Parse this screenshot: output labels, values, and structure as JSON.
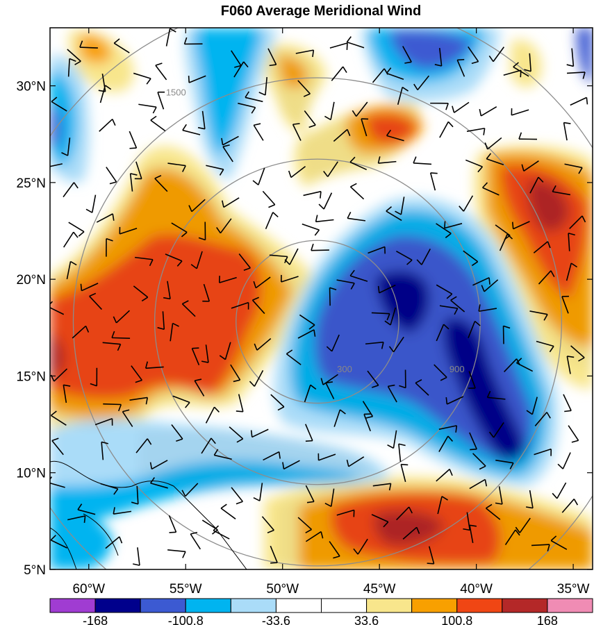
{
  "title": "F060 Average Meridional Wind",
  "map": {
    "lon_range": [
      -62,
      -34
    ],
    "lat_range": [
      5,
      33
    ],
    "lon_ticks": [
      {
        "lon": -60,
        "label": "60°W"
      },
      {
        "lon": -55,
        "label": "55°W"
      },
      {
        "lon": -50,
        "label": "50°W"
      },
      {
        "lon": -45,
        "label": "45°W"
      },
      {
        "lon": -40,
        "label": "40°W"
      },
      {
        "lon": -35,
        "label": "35°W"
      }
    ],
    "lat_ticks": [
      {
        "lat": 30,
        "label": "30°N"
      },
      {
        "lat": 25,
        "label": "25°N"
      },
      {
        "lat": 20,
        "label": "20°N"
      },
      {
        "lat": 15,
        "label": "15°N"
      },
      {
        "lat": 10,
        "label": "10°N"
      },
      {
        "lat": 5,
        "label": "5°N"
      }
    ],
    "range_rings": [
      {
        "label": "300",
        "label_lon": -46.8,
        "label_lat": 15.2
      },
      {
        "label": "900",
        "label_lon": -41.0,
        "label_lat": 15.2
      },
      {
        "label": "1500",
        "label_lon": -55.5,
        "label_lat": 29.5
      }
    ],
    "ring_center": {
      "lon": -48.2,
      "lat": 17.8
    },
    "ring_radii_deg": [
      4.2,
      8.4,
      12.6,
      16.8
    ],
    "stipple_color": "#000000"
  },
  "colorbar": {
    "colors": [
      "#a03cd2",
      "#00008c",
      "#3c5ad2",
      "#00b4f0",
      "#aadcf8",
      "#ffffff",
      "#ffffff",
      "#f8e68c",
      "#f8a000",
      "#f04614",
      "#b42828",
      "#f08cb4"
    ],
    "labels": [
      "-168",
      "-100.8",
      "-33.6",
      "33.6",
      "100.8",
      "168"
    ],
    "levels": [
      -201.6,
      -168,
      -134.4,
      -100.8,
      -67.2,
      -33.6,
      0,
      33.6,
      67.2,
      100.8,
      134.4,
      168
    ]
  },
  "chart_data": {
    "type": "heatmap",
    "title": "F060 Average Meridional Wind",
    "variable": "meridional wind",
    "contour_levels": [
      -201.6,
      -168,
      -134.4,
      -100.8,
      -67.2,
      -33.6,
      0,
      33.6,
      67.2,
      100.8,
      134.4,
      168
    ],
    "features": [
      {
        "kind": "positive",
        "lon": -57.0,
        "lat": 20.5,
        "value": 120
      },
      {
        "kind": "positive",
        "lon": -61.0,
        "lat": 16.0,
        "value": 150
      },
      {
        "kind": "positive",
        "lon": -53.0,
        "lat": 16.0,
        "value": 110
      },
      {
        "kind": "positive",
        "lon": -37.0,
        "lat": 22.5,
        "value": 140
      },
      {
        "kind": "positive",
        "lon": -40.0,
        "lat": 7.0,
        "value": 120
      },
      {
        "kind": "positive",
        "lon": -44.0,
        "lat": 27.5,
        "value": 110
      },
      {
        "kind": "positive",
        "lon": -49.5,
        "lat": 30.0,
        "value": 60
      },
      {
        "kind": "negative",
        "lon": -44.5,
        "lat": 18.0,
        "value": -150
      },
      {
        "kind": "negative",
        "lon": -40.0,
        "lat": 13.5,
        "value": -180
      },
      {
        "kind": "negative",
        "lon": -60.5,
        "lat": 28.5,
        "value": -90
      },
      {
        "kind": "negative",
        "lon": -50.5,
        "lat": 11.0,
        "value": -80
      },
      {
        "kind": "negative",
        "lon": -44.0,
        "lat": 31.5,
        "value": -110
      }
    ]
  }
}
